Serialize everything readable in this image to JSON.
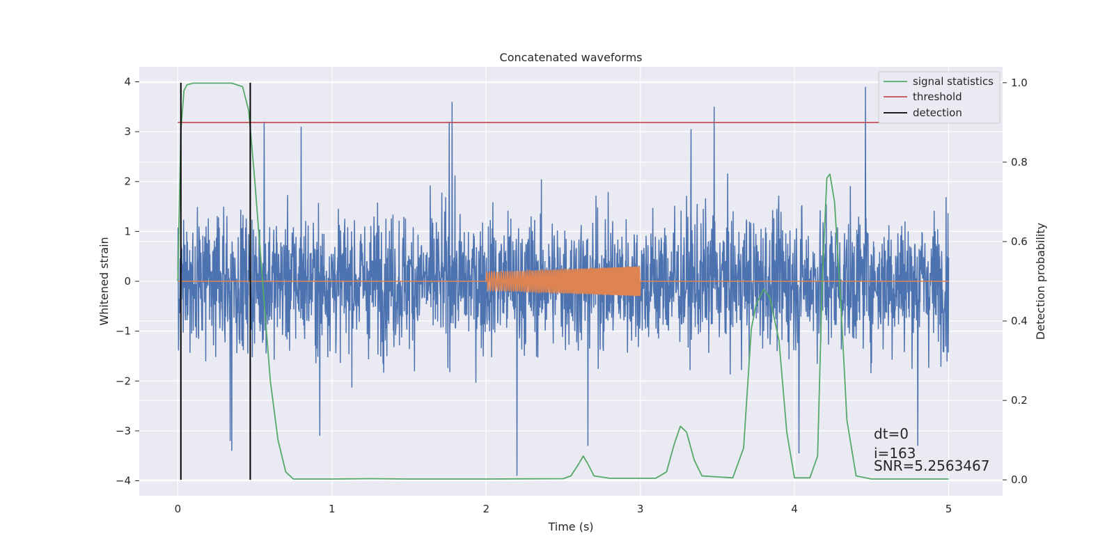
{
  "chart_data": {
    "type": "line",
    "title": "Concatenated waveforms",
    "xlabel": "Time (s)",
    "ylabel": "Whitened strain",
    "y2label": "Detection probability",
    "xlim": [
      -0.25,
      5.35
    ],
    "ylim": [
      -4.3,
      4.3
    ],
    "y2lim": [
      -0.04,
      1.04
    ],
    "xticks": [
      0,
      1,
      2,
      3,
      4,
      5
    ],
    "yticks": [
      4,
      3,
      2,
      1,
      0,
      -1,
      -2,
      -3,
      -4
    ],
    "y2ticks": [
      1.0,
      0.8,
      0.6,
      0.4,
      0.2,
      0.0
    ],
    "grid": true,
    "legend_position": "top-right",
    "legend": [
      {
        "label": "signal statistics",
        "color": "#55a868"
      },
      {
        "label": "threshold",
        "color": "#c44e52"
      },
      {
        "label": "detection",
        "color": "#000000"
      }
    ],
    "series": [
      {
        "name": "strain",
        "axis": "left",
        "color": "#4c72b0",
        "description": "whitened noise strain 0 to 5 s, mostly within [-2.5, 2.5] with spikes",
        "x_range": [
          0,
          5
        ],
        "spikes": [
          {
            "x": 0.56,
            "y": 3.2
          },
          {
            "x": 0.8,
            "y": 3.1
          },
          {
            "x": 1.78,
            "y": 3.6
          },
          {
            "x": 1.76,
            "y": 3.2
          },
          {
            "x": 3.48,
            "y": 3.5
          },
          {
            "x": 3.33,
            "y": 3.05
          },
          {
            "x": 4.46,
            "y": 3.9
          },
          {
            "x": 0.35,
            "y": -3.4
          },
          {
            "x": 0.34,
            "y": -3.2
          },
          {
            "x": 2.2,
            "y": -3.9
          },
          {
            "x": 2.66,
            "y": -3.3
          },
          {
            "x": 4.03,
            "y": -3.45
          },
          {
            "x": 4.8,
            "y": -3.3
          },
          {
            "x": 0.92,
            "y": -3.1
          }
        ]
      },
      {
        "name": "injection",
        "axis": "left",
        "color": "#dd8452",
        "description": "chirp injected between 2 and 3 s, amplitude growing from about 0.18 to 0.3",
        "x_range": [
          2,
          3
        ],
        "amplitude_start": 0.18,
        "amplitude_end": 0.3
      },
      {
        "name": "signal statistics",
        "axis": "right",
        "color": "#55a868",
        "x": [
          0,
          0.02,
          0.04,
          0.06,
          0.1,
          0.2,
          0.35,
          0.42,
          0.46,
          0.5,
          0.55,
          0.6,
          0.65,
          0.7,
          0.75,
          1.0,
          1.25,
          1.5,
          2.0,
          2.5,
          2.55,
          2.6,
          2.63,
          2.66,
          2.7,
          2.8,
          3.1,
          3.17,
          3.22,
          3.26,
          3.3,
          3.35,
          3.4,
          3.6,
          3.67,
          3.72,
          3.75,
          3.8,
          3.84,
          3.9,
          3.95,
          4.0,
          4.1,
          4.15,
          4.18,
          4.21,
          4.23,
          4.26,
          4.3,
          4.34,
          4.4,
          4.5,
          5.0
        ],
        "y": [
          0.5,
          0.88,
          0.98,
          0.995,
          0.999,
          0.999,
          0.999,
          0.99,
          0.93,
          0.75,
          0.5,
          0.25,
          0.1,
          0.02,
          0.002,
          0.002,
          0.003,
          0.002,
          0.002,
          0.003,
          0.01,
          0.04,
          0.06,
          0.04,
          0.01,
          0.004,
          0.004,
          0.02,
          0.09,
          0.135,
          0.12,
          0.05,
          0.01,
          0.005,
          0.08,
          0.38,
          0.44,
          0.48,
          0.46,
          0.35,
          0.12,
          0.005,
          0.005,
          0.06,
          0.5,
          0.76,
          0.77,
          0.7,
          0.45,
          0.15,
          0.01,
          0.002,
          0.002
        ]
      },
      {
        "name": "threshold",
        "axis": "right",
        "color": "#c44e52",
        "x": [
          0,
          5.1
        ],
        "y": [
          0.9,
          0.9
        ]
      },
      {
        "name": "detection",
        "axis": "right",
        "color": "#000000",
        "type": "vlines",
        "x": [
          0.02,
          0.47
        ],
        "y_range": [
          0.0,
          1.0
        ]
      }
    ],
    "annotations": [
      "dt=0",
      "i=163",
      "SNR=5.2563467"
    ]
  }
}
